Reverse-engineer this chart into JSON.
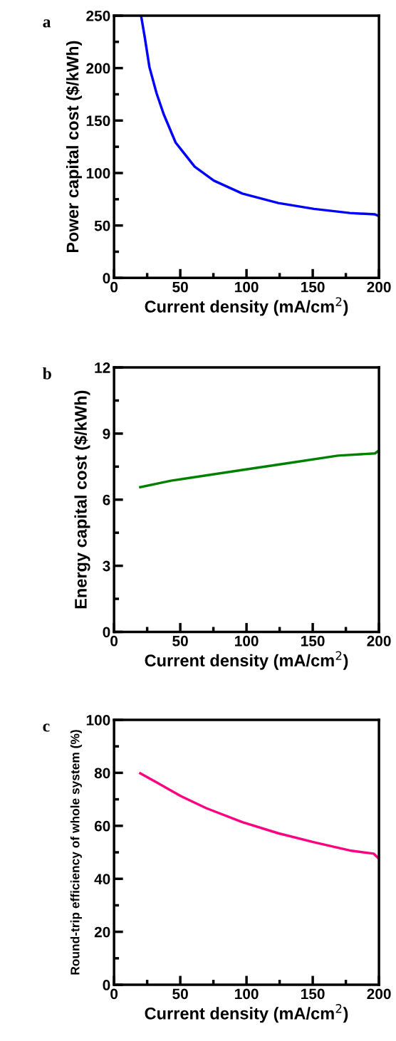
{
  "chart_data": [
    {
      "type": "line",
      "title": "a",
      "xlabel": "Current density (mA/cm$^{2}$)",
      "ylabel": "Power capital cost ($/kWh)",
      "x": [
        20.4,
        23.1,
        26.7,
        32.1,
        37.5,
        46.5,
        60.9,
        75.3,
        96.9,
        124,
        151,
        178,
        197,
        200
      ],
      "series": [
        {
          "color": "#0000ff",
          "values": [
            250,
            230,
            201,
            176,
            156,
            129,
            106,
            92.8,
            80.4,
            71.4,
            65.8,
            61.9,
            60.6,
            59
          ]
        }
      ],
      "xlim": [
        0,
        200
      ],
      "ylim": [
        0,
        250
      ],
      "xticks": [
        0,
        {
          "value": 25,
          "label": null
        },
        50,
        {
          "value": 75,
          "label": null
        },
        100,
        {
          "value": 125,
          "label": null
        },
        150,
        {
          "value": 175,
          "label": null
        },
        200
      ],
      "yticks": [
        0,
        {
          "value": 25,
          "label": null
        },
        50,
        {
          "value": 75,
          "label": null
        },
        100,
        {
          "value": 125,
          "label": null
        },
        150,
        {
          "value": 175,
          "label": null
        },
        200,
        {
          "value": 225,
          "label": null
        },
        250
      ],
      "grid": false,
      "legend": false,
      "marker": "none",
      "line_style": "solid"
    },
    {
      "type": "line",
      "title": "b",
      "xlabel": "Current density (mA/cm$^{2}$)",
      "ylabel": "Energy capital cost ($/kWh)",
      "x": [
        19.8,
        42.9,
        96.9,
        133,
        169,
        197,
        200
      ],
      "series": [
        {
          "color": "#008000",
          "values": [
            6.57,
            6.86,
            7.35,
            7.67,
            8.0,
            8.1,
            8.23
          ]
        }
      ],
      "xlim": [
        0,
        200
      ],
      "ylim": [
        0,
        12
      ],
      "xticks": [
        0,
        {
          "value": 25,
          "label": null
        },
        50,
        {
          "value": 75,
          "label": null
        },
        100,
        {
          "value": 125,
          "label": null
        },
        150,
        {
          "value": 175,
          "label": null
        },
        200
      ],
      "yticks": [
        0,
        {
          "value": 1.5,
          "label": null
        },
        3,
        {
          "value": 4.5,
          "label": null
        },
        6,
        {
          "value": 7.5,
          "label": null
        },
        9,
        {
          "value": 10.5,
          "label": null
        },
        12
      ],
      "grid": false,
      "legend": false,
      "marker": "none",
      "line_style": "solid"
    },
    {
      "type": "line",
      "title": "c",
      "xlabel": "Current density (mA/cm$^{2}$)",
      "ylabel": "Round-trip efficiency of whole system (%)",
      "x": [
        19.8,
        32.1,
        50.1,
        69.9,
        96.9,
        124,
        151,
        178,
        196,
        200
      ],
      "series": [
        {
          "color": "#ff0080",
          "values": [
            79.8,
            76.4,
            71.3,
            66.6,
            61.4,
            57.2,
            53.8,
            50.7,
            49.5,
            47.6
          ]
        }
      ],
      "xlim": [
        0,
        200
      ],
      "ylim": [
        0,
        100
      ],
      "xticks": [
        0,
        {
          "value": 25,
          "label": null
        },
        50,
        {
          "value": 75,
          "label": null
        },
        100,
        {
          "value": 125,
          "label": null
        },
        150,
        {
          "value": 175,
          "label": null
        },
        200
      ],
      "yticks": [
        0,
        {
          "value": 10,
          "label": null
        },
        20,
        {
          "value": 30,
          "label": null
        },
        40,
        {
          "value": 50,
          "label": null
        },
        60,
        {
          "value": 70,
          "label": null
        },
        80,
        {
          "value": 90,
          "label": null
        },
        100
      ],
      "grid": false,
      "legend": false,
      "marker": "none",
      "line_style": "solid"
    }
  ]
}
